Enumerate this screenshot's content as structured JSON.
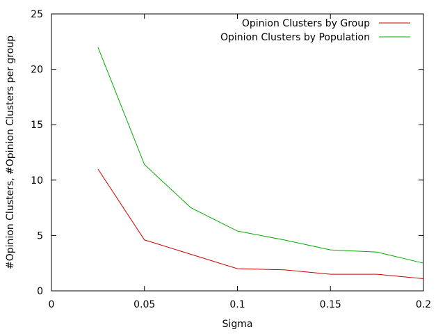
{
  "chart_data": {
    "type": "line",
    "xlabel": "Sigma",
    "ylabel": "#Opinion Clusters, #Opinion Clusters per group",
    "xlim": [
      0,
      0.2
    ],
    "ylim": [
      0,
      25
    ],
    "x_ticks": [
      0,
      0.05,
      0.1,
      0.15,
      0.2
    ],
    "x_tick_labels": [
      "0",
      "0.05",
      "0.1",
      "0.15",
      "0.2"
    ],
    "y_ticks": [
      0,
      5,
      10,
      15,
      20,
      25
    ],
    "y_tick_labels": [
      "0",
      "5",
      "10",
      "15",
      "20",
      "25"
    ],
    "grid": false,
    "legend_position": "top-right",
    "series": [
      {
        "name": "Opinion Clusters by Group",
        "color": "#cc0000",
        "x": [
          0.025,
          0.05,
          0.075,
          0.1,
          0.125,
          0.15,
          0.175,
          0.2
        ],
        "y": [
          11.0,
          4.6,
          3.3,
          2.0,
          1.9,
          1.5,
          1.5,
          1.1
        ]
      },
      {
        "name": "Opinion Clusters by Population",
        "color": "#00aa00",
        "x": [
          0.025,
          0.05,
          0.075,
          0.1,
          0.125,
          0.15,
          0.175,
          0.2
        ],
        "y": [
          22.0,
          11.4,
          7.5,
          5.4,
          4.6,
          3.7,
          3.5,
          2.5
        ]
      }
    ]
  }
}
